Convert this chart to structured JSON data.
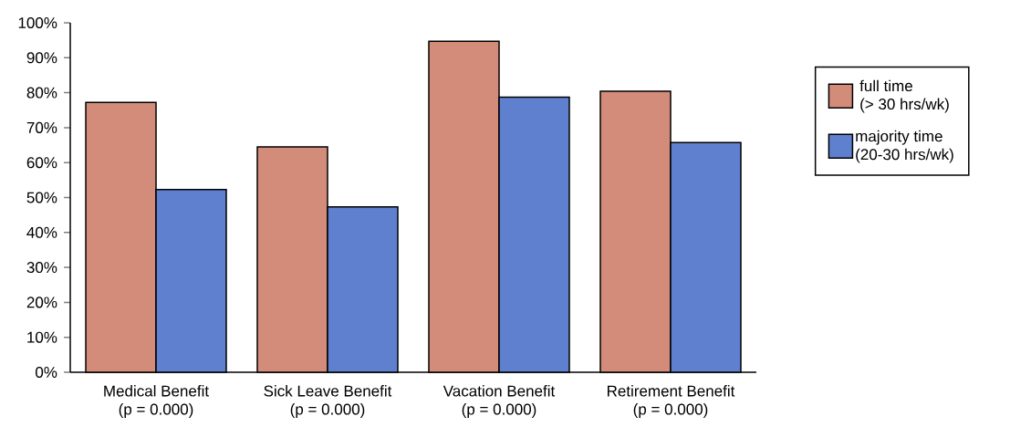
{
  "chart_data": {
    "type": "bar",
    "categories": [
      "Medical Benefit\n(p = 0.000)",
      "Sick Leave Benefit\n(p = 0.000)",
      "Vacation Benefit\n(p = 0.000)",
      "Retirement Benefit\n(p = 0.000)"
    ],
    "series": [
      {
        "name": "full time\n(> 30 hrs/wk)",
        "color": "#d48c7a",
        "values": [
          77.2,
          64.5,
          94.7,
          80.4
        ]
      },
      {
        "name": "majority time\n(20-30 hrs/wk)",
        "color": "#5e80ce",
        "values": [
          52.3,
          47.3,
          78.7,
          65.7
        ]
      }
    ],
    "ylim": [
      0,
      100
    ],
    "yticks": [
      {
        "value": 0,
        "label": "0%"
      },
      {
        "value": 10,
        "label": "10%"
      },
      {
        "value": 20,
        "label": "20%"
      },
      {
        "value": 30,
        "label": "30%"
      },
      {
        "value": 40,
        "label": "40%"
      },
      {
        "value": 50,
        "label": "50%"
      },
      {
        "value": 60,
        "label": "60%"
      },
      {
        "value": 70,
        "label": "70%"
      },
      {
        "value": 80,
        "label": "80%"
      },
      {
        "value": 90,
        "label": "90%"
      },
      {
        "value": 100,
        "label": "100%"
      }
    ],
    "legend": "right",
    "grid": false
  }
}
